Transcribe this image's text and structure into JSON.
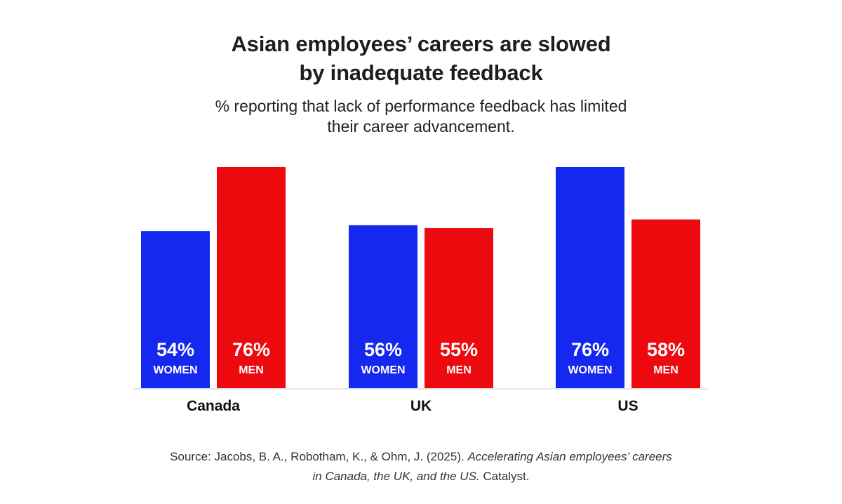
{
  "header": {
    "title_line1": "Asian employees’ careers are slowed",
    "title_line2": "by inadequate feedback",
    "subtitle_line1": "% reporting that lack of performance feedback has limited",
    "subtitle_line2": "their career advancement."
  },
  "colors": {
    "women": "#1428f0",
    "men": "#ec0a0f",
    "baseline": "#e4e4e4",
    "label_text": "#ffffff",
    "category_text": "#111111"
  },
  "chart_data": {
    "type": "bar",
    "categories": [
      "Canada",
      "UK",
      "US"
    ],
    "series": [
      {
        "name": "WOMEN",
        "values": [
          54,
          56,
          76
        ]
      },
      {
        "name": "MEN",
        "values": [
          76,
          55,
          58
        ]
      }
    ],
    "value_labels": [
      [
        "54%",
        "56%",
        "76%"
      ],
      [
        "76%",
        "55%",
        "58%"
      ]
    ],
    "title": "Asian employees’ careers are slowed by inadequate feedback",
    "subtitle": "% reporting that lack of performance feedback has limited their career advancement.",
    "xlabel": "",
    "ylabel": "",
    "ylim": [
      0,
      76
    ],
    "grid": false,
    "legend": "none"
  },
  "source": {
    "prefix": "Source: Jacobs, B. A., Robotham, K., & Ohm, J. (2025). ",
    "title_italic_line1": "Accelerating Asian employees’ careers",
    "title_italic_line2": "in Canada, the UK, and the US.",
    "suffix": " Catalyst."
  }
}
